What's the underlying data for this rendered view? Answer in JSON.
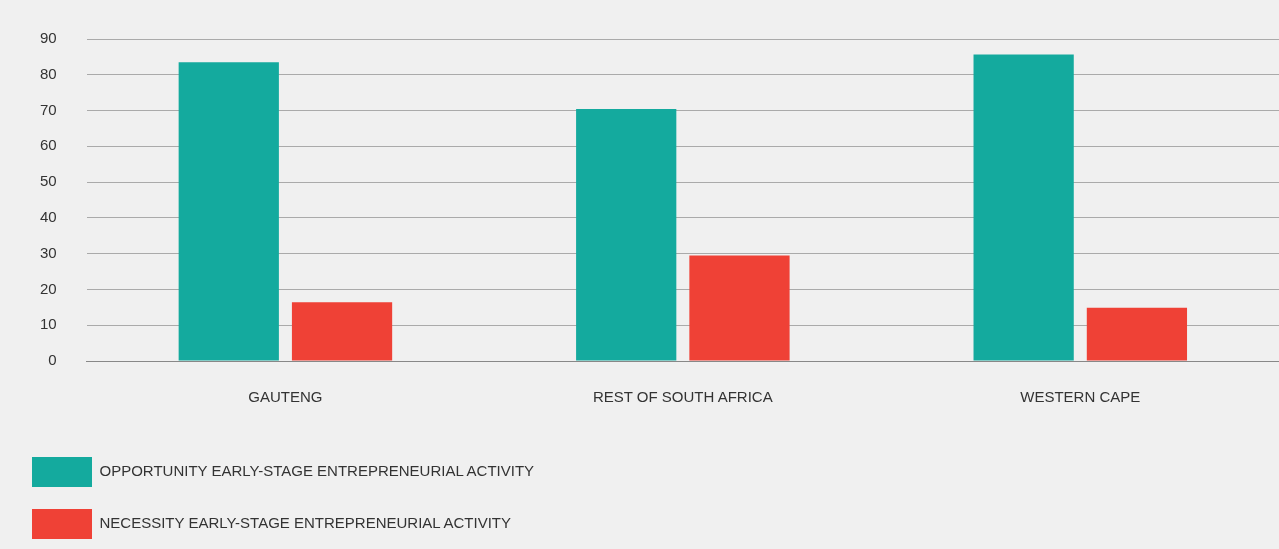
{
  "chart_data": {
    "type": "bar",
    "categories": [
      "GAUTENG",
      "REST OF SOUTH AFRICA",
      "WESTERN CAPE"
    ],
    "series": [
      {
        "name": "OPPORTUNITY EARLY-STAGE ENTREPRENEURIAL ACTIVITY",
        "color": "#14aa9e",
        "values": [
          83.5,
          70.4,
          85.7
        ]
      },
      {
        "name": "NECESSITY EARLY-STAGE ENTREPRENEURIAL ACTIVITY",
        "color": "#ef4136",
        "values": [
          16.4,
          29.5,
          14.9
        ]
      }
    ],
    "ylim": [
      0,
      90
    ],
    "yticks": [
      0,
      10,
      20,
      30,
      40,
      50,
      60,
      70,
      80,
      90
    ],
    "grid": "y",
    "legend": "bottom left"
  }
}
